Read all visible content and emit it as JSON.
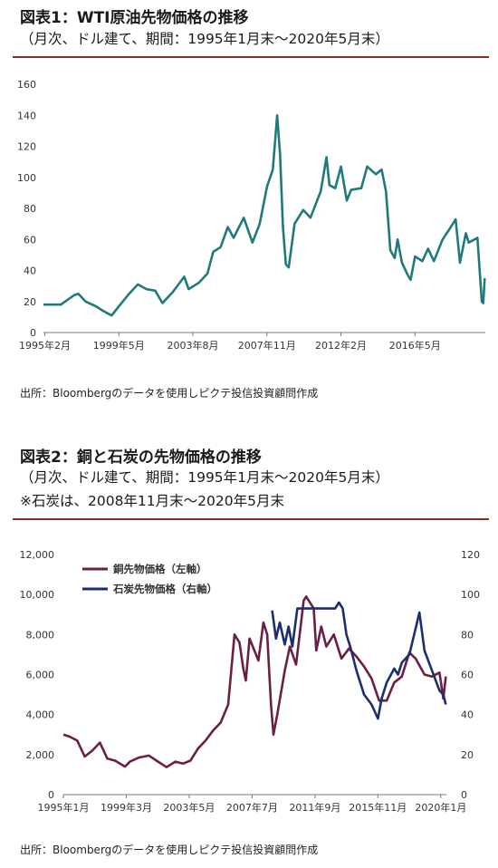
{
  "chart1": {
    "title": "図表1：WTI原油先物価格の推移",
    "subtitle": "（月次、ドル建て、期間：1995年1月末～2020年5月末）",
    "source": "出所：Bloombergのデータを使用しピクテ投信投資顧問作成"
  },
  "chart2": {
    "title": "図表2：銅と石炭の先物価格の推移",
    "subtitle": "（月次、ドル建て、期間：1995年1月末～2020年5月末）",
    "note": "※石炭は、2008年11月末～2020年5月末",
    "source": "出所：Bloombergのデータを使用しピクテ投信投資顧問作成"
  },
  "chart_data": [
    {
      "type": "line",
      "title": "",
      "xlabel": "",
      "ylabel": "",
      "ylim": [
        0,
        160
      ],
      "yticks": [
        0,
        20,
        40,
        60,
        80,
        100,
        120,
        140,
        160
      ],
      "xtick_labels": [
        "1995年2月",
        "1999年5月",
        "2003年8月",
        "2007年11月",
        "2012年2月",
        "2016年5月"
      ],
      "grid": false,
      "colors": {
        "series": "#1f7a78"
      },
      "series": [
        {
          "name": "",
          "points": [
            [
              "1995-01",
              18
            ],
            [
              "1995-06",
              18
            ],
            [
              "1996-01",
              18
            ],
            [
              "1996-10",
              24
            ],
            [
              "1997-01",
              25
            ],
            [
              "1997-06",
              20
            ],
            [
              "1998-01",
              17
            ],
            [
              "1998-06",
              14
            ],
            [
              "1998-12",
              11
            ],
            [
              "1999-05",
              17
            ],
            [
              "1999-12",
              25
            ],
            [
              "2000-06",
              31
            ],
            [
              "2000-12",
              28
            ],
            [
              "2001-06",
              27
            ],
            [
              "2001-11",
              19
            ],
            [
              "2002-06",
              26
            ],
            [
              "2003-02",
              36
            ],
            [
              "2003-05",
              28
            ],
            [
              "2003-12",
              32
            ],
            [
              "2004-06",
              38
            ],
            [
              "2004-10",
              52
            ],
            [
              "2005-03",
              55
            ],
            [
              "2005-08",
              68
            ],
            [
              "2005-12",
              61
            ],
            [
              "2006-07",
              74
            ],
            [
              "2007-01",
              58
            ],
            [
              "2007-06",
              70
            ],
            [
              "2007-11",
              94
            ],
            [
              "2008-03",
              105
            ],
            [
              "2008-06",
              140
            ],
            [
              "2008-08",
              115
            ],
            [
              "2008-10",
              68
            ],
            [
              "2008-12",
              44
            ],
            [
              "2009-02",
              42
            ],
            [
              "2009-06",
              70
            ],
            [
              "2009-12",
              79
            ],
            [
              "2010-05",
              74
            ],
            [
              "2010-12",
              91
            ],
            [
              "2011-04",
              113
            ],
            [
              "2011-06",
              95
            ],
            [
              "2011-10",
              93
            ],
            [
              "2012-02",
              107
            ],
            [
              "2012-06",
              85
            ],
            [
              "2012-09",
              92
            ],
            [
              "2013-04",
              93
            ],
            [
              "2013-08",
              107
            ],
            [
              "2014-02",
              102
            ],
            [
              "2014-06",
              105
            ],
            [
              "2014-09",
              91
            ],
            [
              "2014-12",
              53
            ],
            [
              "2015-03",
              48
            ],
            [
              "2015-05",
              60
            ],
            [
              "2015-08",
              45
            ],
            [
              "2015-12",
              37
            ],
            [
              "2016-02",
              34
            ],
            [
              "2016-05",
              49
            ],
            [
              "2016-10",
              46
            ],
            [
              "2017-02",
              54
            ],
            [
              "2017-06",
              46
            ],
            [
              "2017-12",
              60
            ],
            [
              "2018-05",
              67
            ],
            [
              "2018-09",
              73
            ],
            [
              "2018-12",
              45
            ],
            [
              "2019-04",
              64
            ],
            [
              "2019-06",
              58
            ],
            [
              "2019-12",
              61
            ],
            [
              "2020-03",
              20
            ],
            [
              "2020-04",
              19
            ],
            [
              "2020-05",
              35
            ]
          ]
        }
      ]
    },
    {
      "type": "line",
      "title": "",
      "xlabel": "",
      "ylabel": "",
      "ylim": [
        0,
        12000
      ],
      "yticks": [
        0,
        2000,
        4000,
        6000,
        8000,
        10000,
        12000
      ],
      "y2lim": [
        0,
        120
      ],
      "y2ticks": [
        0,
        20,
        40,
        60,
        80,
        100,
        120
      ],
      "xtick_labels": [
        "1995年1月",
        "1999年3月",
        "2003年5月",
        "2007年7月",
        "2011年9月",
        "2015年11月",
        "2020年1月"
      ],
      "grid": false,
      "legend_position": "top-left",
      "series": [
        {
          "name": "銅先物価格（左軸）",
          "axis": "left",
          "color": "#6b1f45",
          "points": [
            [
              "1995-01",
              3000
            ],
            [
              "1995-06",
              2900
            ],
            [
              "1995-12",
              2700
            ],
            [
              "1996-06",
              1900
            ],
            [
              "1996-12",
              2200
            ],
            [
              "1997-06",
              2600
            ],
            [
              "1997-12",
              1800
            ],
            [
              "1998-06",
              1700
            ],
            [
              "1999-02",
              1400
            ],
            [
              "1999-06",
              1650
            ],
            [
              "2000-01",
              1850
            ],
            [
              "2000-09",
              1950
            ],
            [
              "2001-03",
              1700
            ],
            [
              "2001-11",
              1370
            ],
            [
              "2002-06",
              1650
            ],
            [
              "2002-12",
              1550
            ],
            [
              "2003-06",
              1700
            ],
            [
              "2003-12",
              2300
            ],
            [
              "2004-06",
              2700
            ],
            [
              "2004-12",
              3200
            ],
            [
              "2005-06",
              3600
            ],
            [
              "2005-12",
              4500
            ],
            [
              "2006-05",
              8000
            ],
            [
              "2006-09",
              7600
            ],
            [
              "2006-12",
              6300
            ],
            [
              "2007-02",
              5700
            ],
            [
              "2007-05",
              7800
            ],
            [
              "2007-12",
              6700
            ],
            [
              "2008-04",
              8600
            ],
            [
              "2008-07",
              8000
            ],
            [
              "2008-10",
              4500
            ],
            [
              "2008-12",
              3000
            ],
            [
              "2009-03",
              4000
            ],
            [
              "2009-09",
              6200
            ],
            [
              "2010-01",
              7400
            ],
            [
              "2010-06",
              6500
            ],
            [
              "2010-12",
              9700
            ],
            [
              "2011-02",
              9900
            ],
            [
              "2011-08",
              9300
            ],
            [
              "2011-10",
              7200
            ],
            [
              "2012-02",
              8400
            ],
            [
              "2012-06",
              7400
            ],
            [
              "2012-12",
              8000
            ],
            [
              "2013-06",
              6800
            ],
            [
              "2013-12",
              7300
            ],
            [
              "2014-06",
              6900
            ],
            [
              "2014-12",
              6400
            ],
            [
              "2015-06",
              5800
            ],
            [
              "2015-12",
              4700
            ],
            [
              "2016-06",
              4700
            ],
            [
              "2016-12",
              5600
            ],
            [
              "2017-06",
              5900
            ],
            [
              "2017-12",
              7100
            ],
            [
              "2018-05",
              6800
            ],
            [
              "2018-12",
              6000
            ],
            [
              "2019-06",
              5900
            ],
            [
              "2019-12",
              6100
            ],
            [
              "2020-03",
              4800
            ],
            [
              "2020-05",
              5900
            ]
          ]
        },
        {
          "name": "石炭先物価格（右軸）",
          "axis": "right",
          "color": "#1b2f6e",
          "points": [
            [
              "2008-11",
              92
            ],
            [
              "2009-02",
              78
            ],
            [
              "2009-05",
              86
            ],
            [
              "2009-09",
              75
            ],
            [
              "2009-12",
              84
            ],
            [
              "2010-03",
              74
            ],
            [
              "2010-07",
              93
            ],
            [
              "2010-12",
              93
            ],
            [
              "2011-06",
              93
            ],
            [
              "2012-06",
              93
            ],
            [
              "2013-01",
              93
            ],
            [
              "2013-04",
              96
            ],
            [
              "2013-07",
              93
            ],
            [
              "2013-10",
              80
            ],
            [
              "2014-01",
              74
            ],
            [
              "2014-06",
              62
            ],
            [
              "2014-12",
              50
            ],
            [
              "2015-06",
              45
            ],
            [
              "2015-11",
              38
            ],
            [
              "2016-02",
              48
            ],
            [
              "2016-06",
              56
            ],
            [
              "2016-12",
              63
            ],
            [
              "2017-03",
              60
            ],
            [
              "2017-06",
              66
            ],
            [
              "2017-12",
              70
            ],
            [
              "2018-05",
              83
            ],
            [
              "2018-08",
              91
            ],
            [
              "2018-12",
              72
            ],
            [
              "2019-06",
              62
            ],
            [
              "2019-12",
              52
            ],
            [
              "2020-03",
              50
            ],
            [
              "2020-05",
              45
            ]
          ]
        }
      ]
    }
  ]
}
